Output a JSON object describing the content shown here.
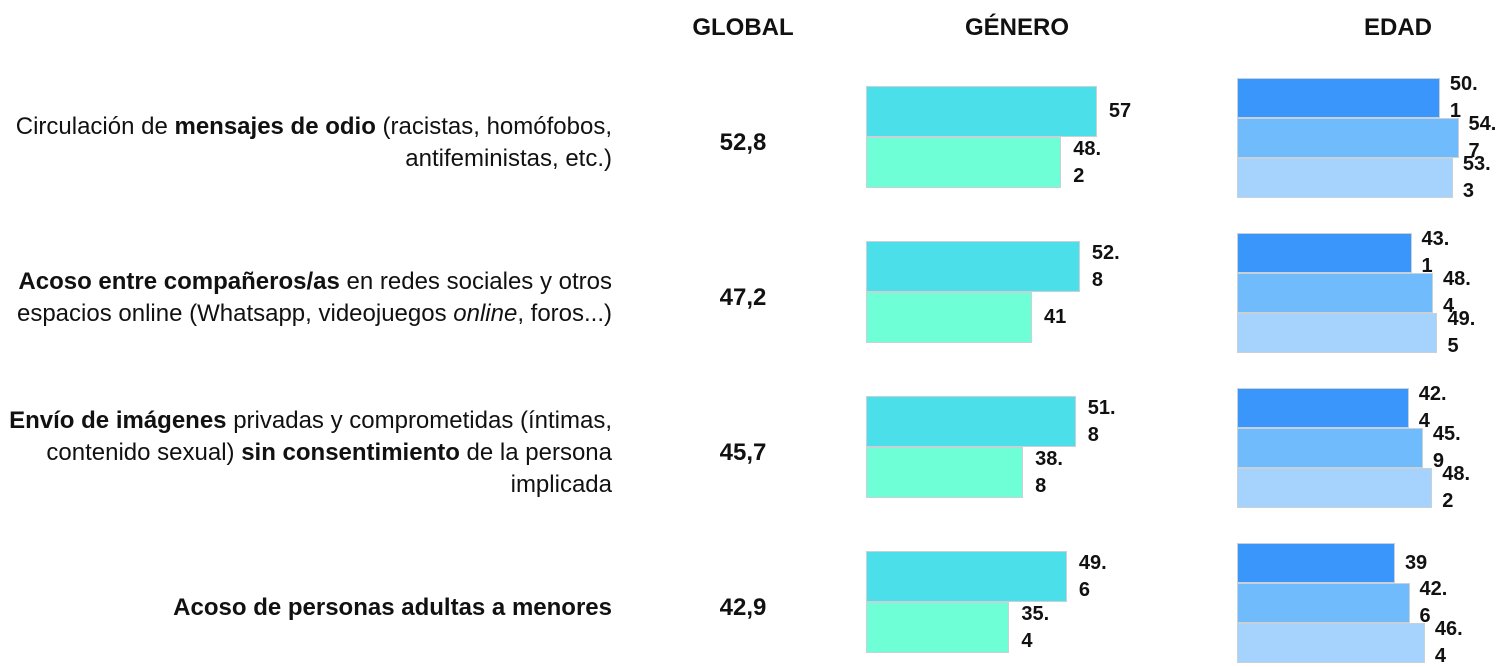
{
  "headers": [
    "GLOBAL",
    "GÉNERO",
    "EDAD"
  ],
  "chart_data": {
    "type": "bar",
    "categories": [
      [
        {
          "text": "Circulación de "
        },
        {
          "text": "mensajes de odio",
          "style": "bold"
        },
        {
          "text": " (racistas, homófobos, antifeministas, etc.)"
        }
      ],
      [
        {
          "text": "Acoso entre compañeros/as",
          "style": "bold"
        },
        {
          "text": " en redes sociales y otros espacios online (Whatsapp, videojuegos "
        },
        {
          "text": "online",
          "style": "italic"
        },
        {
          "text": ", foros...)"
        }
      ],
      [
        {
          "text": "Envío de imágenes",
          "style": "bold"
        },
        {
          "text": " privadas y comprometidas (íntimas, contenido sexual) "
        },
        {
          "text": "sin consentimiento",
          "style": "bold"
        },
        {
          "text": " de la persona implicada"
        }
      ],
      [
        {
          "text": "Acoso de personas adultas a menores",
          "style": "bold"
        }
      ]
    ],
    "global": {
      "values": [
        52.8,
        47.2,
        45.7,
        42.9
      ],
      "value_labels": [
        "52,8",
        "47,2",
        "45,7",
        "42,9"
      ]
    },
    "gender_series": [
      {
        "color": "#4adfe9",
        "values": [
          57,
          52.8,
          51.8,
          49.6
        ]
      },
      {
        "color": "#6fffd6",
        "values": [
          48.2,
          41,
          38.8,
          35.4
        ]
      }
    ],
    "age_series": [
      {
        "color": "#3a96fa",
        "values": [
          50.1,
          43.1,
          42.4,
          39
        ]
      },
      {
        "color": "#6fbbfb",
        "values": [
          54.7,
          48.4,
          45.9,
          42.6
        ]
      },
      {
        "color": "#a6d3fd",
        "values": [
          53.3,
          49.5,
          48.2,
          46.4
        ]
      }
    ]
  }
}
